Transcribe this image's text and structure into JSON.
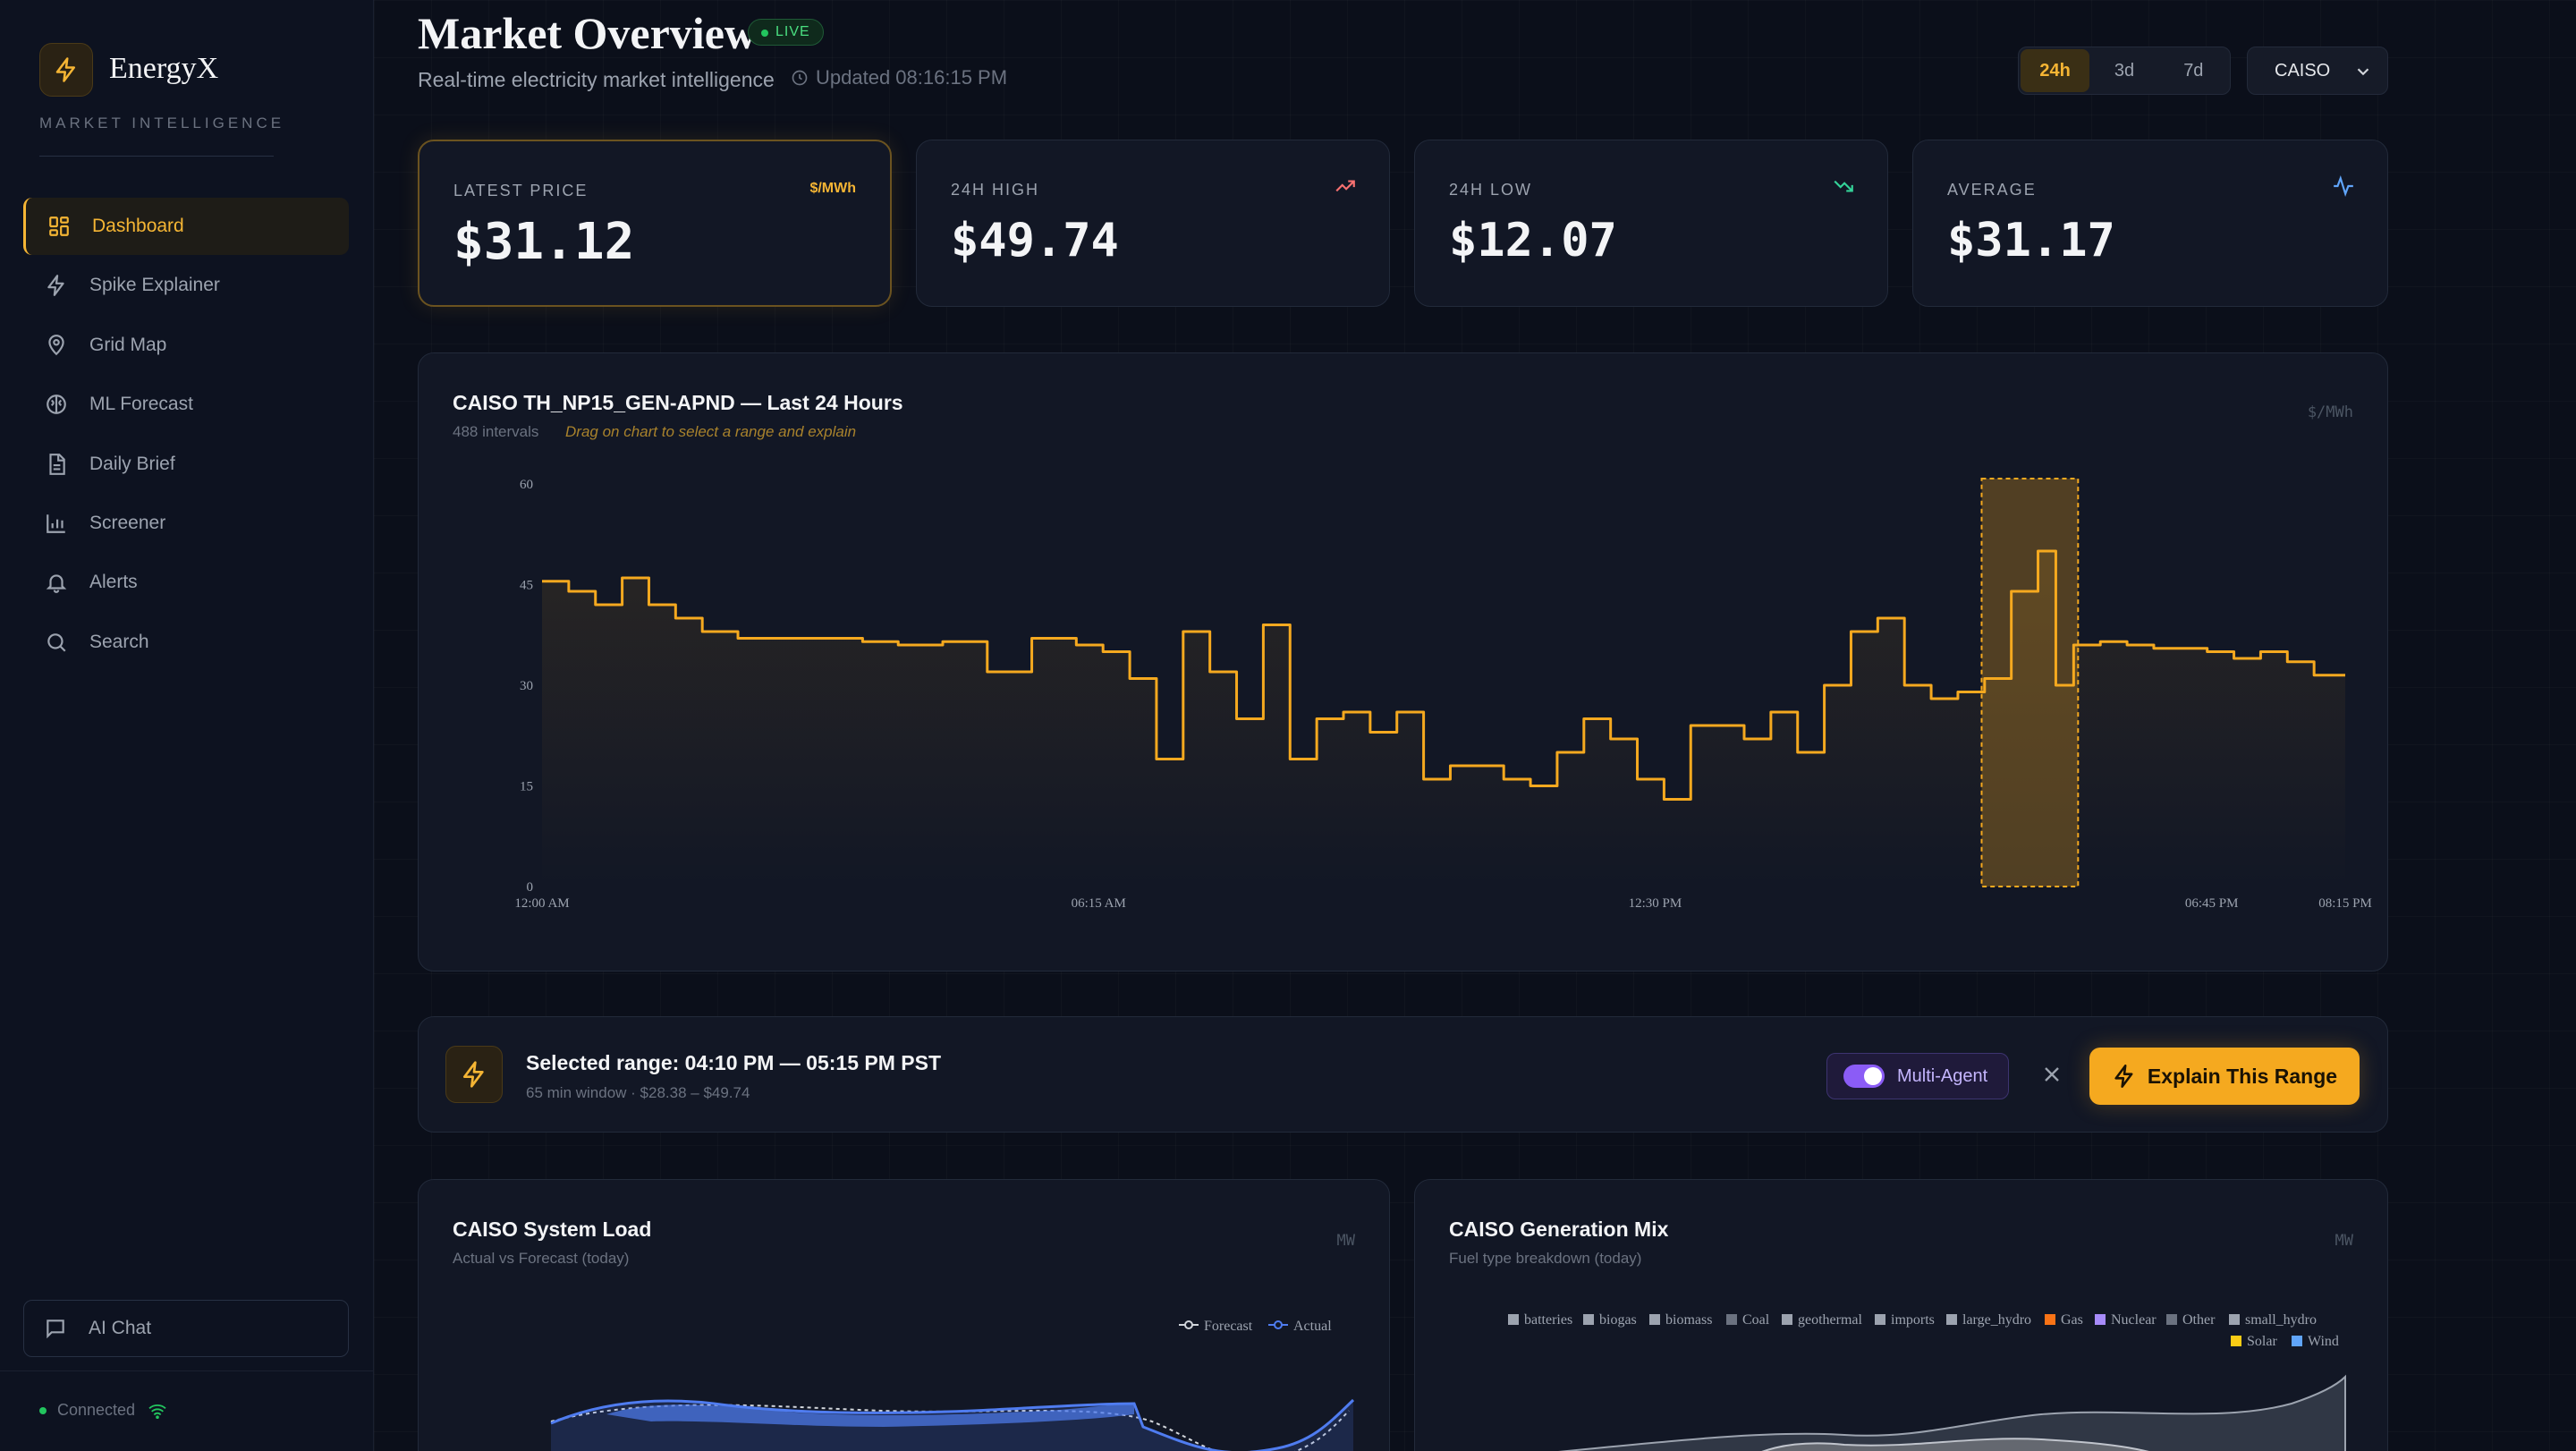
{
  "app": {
    "name": "EnergyX",
    "tagline": "MARKET INTELLIGENCE"
  },
  "colors": {
    "accent": "#f5b534",
    "background": "#0b0f1a",
    "card": "#121725",
    "up": "#f87171",
    "down": "#34d399",
    "avg": "#60a5fa",
    "live": "#22c55e",
    "purple": "#8b5cf6"
  },
  "sidebar": {
    "items": [
      {
        "label": "Dashboard",
        "icon": "dashboard-icon",
        "active": true
      },
      {
        "label": "Spike Explainer",
        "icon": "bolt-icon",
        "active": false
      },
      {
        "label": "Grid Map",
        "icon": "map-pin-icon",
        "active": false
      },
      {
        "label": "ML Forecast",
        "icon": "brain-icon",
        "active": false
      },
      {
        "label": "Daily Brief",
        "icon": "document-icon",
        "active": false
      },
      {
        "label": "Screener",
        "icon": "bar-chart-icon",
        "active": false
      },
      {
        "label": "Alerts",
        "icon": "bell-icon",
        "active": false
      },
      {
        "label": "Search",
        "icon": "search-icon",
        "active": false
      }
    ],
    "ai_chat": "AI Chat",
    "status": "Connected"
  },
  "header": {
    "title": "Market Overview",
    "live": "LIVE",
    "subtitle": "Real-time electricity market intelligence",
    "updated": "Updated 08:16:15 PM",
    "range_tabs": [
      {
        "label": "24h",
        "active": true
      },
      {
        "label": "3d",
        "active": false
      },
      {
        "label": "7d",
        "active": false
      }
    ],
    "market": "CAISO"
  },
  "stats": {
    "latest": {
      "label": "LATEST PRICE",
      "unit": "$/MWh",
      "value": "$31.12"
    },
    "high": {
      "label": "24H HIGH",
      "value": "$49.74"
    },
    "low": {
      "label": "24H LOW",
      "value": "$12.07"
    },
    "avg": {
      "label": "AVERAGE",
      "value": "$31.17"
    }
  },
  "price_chart": {
    "title": "CAISO TH_NP15_GEN-APND — Last 24 Hours",
    "intervals": "488 intervals",
    "hint": "Drag on chart to select a range and explain",
    "unit": "$/MWh"
  },
  "selection": {
    "title": "Selected range: 04:10 PM — 05:15 PM PST",
    "detail": "65 min window · $28.38 – $49.74",
    "multi_agent": "Multi-Agent",
    "explain": "Explain This Range"
  },
  "load_card": {
    "title": "CAISO System Load",
    "subtitle": "Actual vs Forecast (today)",
    "unit": "MW",
    "legend": [
      "Forecast",
      "Actual"
    ]
  },
  "mix_card": {
    "title": "CAISO Generation Mix",
    "subtitle": "Fuel type breakdown (today)",
    "unit": "MW",
    "legend": [
      {
        "name": "batteries",
        "color": "#9ca3af"
      },
      {
        "name": "biogas",
        "color": "#9ca3af"
      },
      {
        "name": "biomass",
        "color": "#9ca3af"
      },
      {
        "name": "Coal",
        "color": "#6b7280"
      },
      {
        "name": "geothermal",
        "color": "#9ca3af"
      },
      {
        "name": "imports",
        "color": "#9ca3af"
      },
      {
        "name": "large_hydro",
        "color": "#9ca3af"
      },
      {
        "name": "Gas",
        "color": "#f97316"
      },
      {
        "name": "Nuclear",
        "color": "#a78bfa"
      },
      {
        "name": "Other",
        "color": "#6b7280"
      },
      {
        "name": "small_hydro",
        "color": "#9ca3af"
      },
      {
        "name": "Solar",
        "color": "#facc15"
      },
      {
        "name": "Wind",
        "color": "#60a5fa"
      }
    ]
  },
  "chart_data": [
    {
      "type": "line",
      "title": "CAISO TH_NP15_GEN-APND — Last 24 Hours",
      "ylabel": "$/MWh",
      "ylim": [
        0,
        60
      ],
      "yticks": [
        0,
        15,
        30,
        45,
        60
      ],
      "xlim": [
        "12:00 AM",
        "08:15 PM"
      ],
      "xtick_labels": [
        "12:00 AM",
        "06:15 AM",
        "12:30 PM",
        "06:45 PM",
        "08:15 PM"
      ],
      "grid": false,
      "selection": {
        "start": "04:10 PM",
        "end": "05:15 PM"
      },
      "series": [
        {
          "color": "#f5a91f",
          "x_hours": [
            0,
            0.3,
            0.6,
            0.9,
            1.2,
            1.5,
            1.8,
            2.0,
            2.2,
            2.5,
            2.8,
            3.2,
            3.6,
            4.0,
            4.5,
            5.0,
            5.5,
            6.0,
            6.3,
            6.6,
            6.9,
            7.2,
            7.5,
            7.8,
            8.1,
            8.4,
            8.7,
            9.0,
            9.3,
            9.6,
            9.9,
            10.2,
            10.5,
            10.8,
            11.1,
            11.4,
            11.7,
            12.0,
            12.3,
            12.6,
            12.9,
            13.2,
            13.5,
            13.8,
            14.1,
            14.4,
            14.7,
            15.0,
            15.3,
            15.6,
            15.9,
            16.2,
            16.5,
            16.8,
            17.0,
            17.2,
            17.5,
            17.8,
            18.1,
            18.4,
            18.7,
            19.0,
            19.3,
            19.6,
            19.9,
            20.25
          ],
          "y": [
            45.5,
            44,
            42,
            46,
            42,
            40,
            38,
            38,
            37,
            37,
            37,
            37,
            36.5,
            36,
            36.5,
            32,
            37,
            36,
            35,
            31,
            19,
            38,
            32,
            25,
            39,
            19,
            25,
            26,
            23,
            26,
            16,
            18,
            18,
            16,
            15,
            20,
            25,
            22,
            16,
            13,
            24,
            24,
            22,
            26,
            20,
            30,
            38,
            40,
            30,
            28,
            29,
            31,
            44,
            50,
            30,
            36,
            36.5,
            36,
            35.5,
            35.5,
            35,
            34,
            35,
            33.5,
            31.5,
            31.5
          ]
        }
      ]
    },
    {
      "type": "line",
      "title": "CAISO System Load",
      "subtitle": "Actual vs Forecast (today)",
      "ylabel": "MW",
      "series": [
        {
          "name": "Forecast"
        },
        {
          "name": "Actual"
        }
      ]
    },
    {
      "type": "area",
      "title": "CAISO Generation Mix",
      "subtitle": "Fuel type breakdown (today)",
      "ylabel": "MW",
      "series": [
        {
          "name": "batteries"
        },
        {
          "name": "biogas"
        },
        {
          "name": "biomass"
        },
        {
          "name": "Coal"
        },
        {
          "name": "geothermal"
        },
        {
          "name": "imports"
        },
        {
          "name": "large_hydro"
        },
        {
          "name": "Gas"
        },
        {
          "name": "Nuclear"
        },
        {
          "name": "Other"
        },
        {
          "name": "small_hydro"
        },
        {
          "name": "Solar"
        },
        {
          "name": "Wind"
        }
      ]
    }
  ]
}
